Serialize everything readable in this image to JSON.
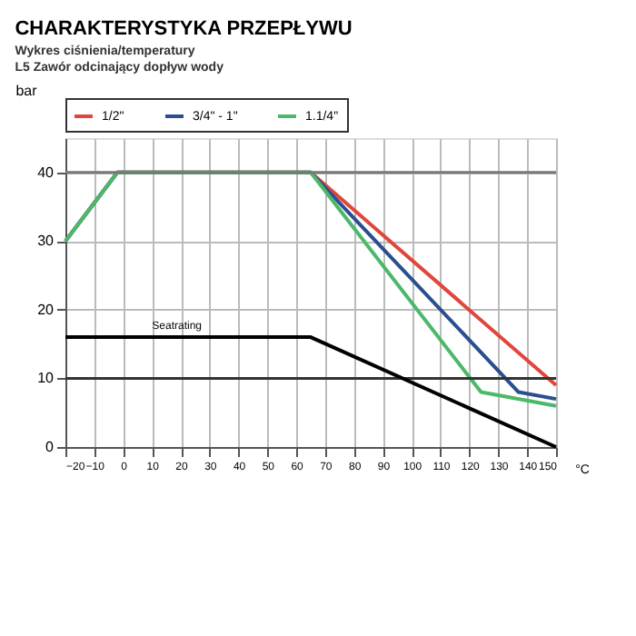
{
  "chart_data": {
    "type": "line",
    "title": "CHARAKTERYSTYKA PRZEPŁYWU",
    "subtitle": [
      "Wykres ciśnienia/temperatury",
      "L5 Zawór odcinający dopływ wody"
    ],
    "xlabel": "°C",
    "ylabel": "bar",
    "series": [
      {
        "name": "1/2\"",
        "color": "#e0463c",
        "x": [
          -20,
          -2,
          65,
          150
        ],
        "values": [
          30,
          40,
          40,
          9
        ]
      },
      {
        "name": "3/4\" - 1\"",
        "color": "#2a4f8f",
        "x": [
          -20,
          -2,
          65,
          137,
          150
        ],
        "values": [
          30,
          40,
          40,
          8,
          7
        ]
      },
      {
        "name": "1.1/4\"",
        "color": "#4cb86a",
        "x": [
          -20,
          -2,
          65,
          124,
          150
        ],
        "values": [
          30,
          40,
          40,
          8,
          6
        ]
      },
      {
        "color": "#000000",
        "x": [
          -20,
          65,
          150
        ],
        "values": [
          16,
          16,
          0
        ]
      }
    ],
    "annotations": [
      {
        "text": "Seatrating",
        "x": 10,
        "y": 17
      }
    ],
    "xlim": [
      -20,
      150
    ],
    "xticks": [
      -20,
      -10,
      0,
      10,
      20,
      30,
      40,
      50,
      60,
      70,
      80,
      90,
      100,
      110,
      120,
      130,
      140,
      150
    ],
    "ylim": [
      0,
      45
    ],
    "yticks": [
      0,
      10,
      20,
      30,
      40
    ],
    "ref_lines": [
      {
        "axis": "y",
        "value": 40,
        "color": "#777777"
      },
      {
        "axis": "y",
        "value": 10,
        "color": "#333333"
      }
    ],
    "grid": true,
    "legend": "top",
    "marker": "none",
    "line_style": "solid"
  }
}
